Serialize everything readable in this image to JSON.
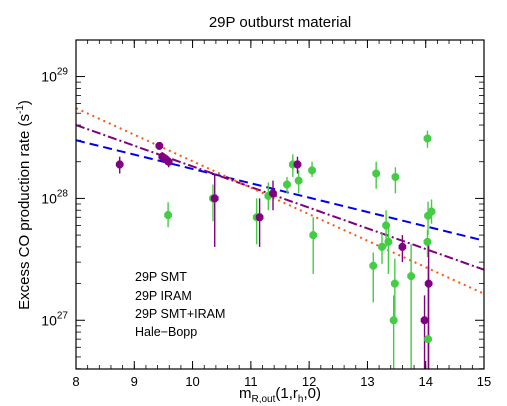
{
  "chart_data": {
    "type": "scatter",
    "title": "29P outburst material",
    "xlabel": {
      "main": "m",
      "sub": "R,out",
      "suffix": "(1,r",
      "sub2": "h",
      "end": ",0)"
    },
    "ylabel": {
      "main": "Excess CO production rate (s",
      "sup": "-1",
      "end": ")"
    },
    "xlim": [
      8,
      15
    ],
    "ylim_log10": [
      26.6,
      29.3
    ],
    "yscale": "log",
    "xticks": [
      8,
      9,
      10,
      11,
      12,
      13,
      14,
      15
    ],
    "yticks": [
      {
        "base": "10",
        "exp": "27",
        "log": 27
      },
      {
        "base": "10",
        "exp": "28",
        "log": 28
      },
      {
        "base": "10",
        "exp": "29",
        "log": 29
      }
    ],
    "legend": {
      "placement": "bottom-left",
      "entries": [
        {
          "label": "29P SMT",
          "color": "#44cc44"
        },
        {
          "label": "29P IRAM",
          "color": "#800080"
        },
        {
          "label": "29P SMT+IRAM",
          "color": "#0000ee"
        },
        {
          "label": "Hale−Bopp",
          "color": "#ff5511"
        }
      ]
    },
    "series": [
      {
        "name": "29P SMT",
        "color": "#44cc44",
        "points": [
          {
            "x": 9.58,
            "y": 7.3e+27,
            "ylo": 5.8e+27,
            "yhi": 9.3e+27
          },
          {
            "x": 10.35,
            "y": 1e+28,
            "ylo": 6.5e+27,
            "yhi": 1.3e+28
          },
          {
            "x": 11.1,
            "y": 7e+27,
            "ylo": 4.2e+27,
            "yhi": 1e+28
          },
          {
            "x": 11.3,
            "y": 1.05e+28,
            "ylo": 8e+27,
            "yhi": 1.35e+28
          },
          {
            "x": 11.62,
            "y": 1.3e+28,
            "ylo": 1.1e+28,
            "yhi": 1.5e+28
          },
          {
            "x": 11.72,
            "y": 1.9e+28,
            "ylo": 1.5e+28,
            "yhi": 2.3e+28
          },
          {
            "x": 11.82,
            "y": 1.4e+28,
            "ylo": 1.1e+28,
            "yhi": 1.7e+28
          },
          {
            "x": 12.05,
            "y": 1.7e+28,
            "ylo": 1.5e+28,
            "yhi": 2e+28
          },
          {
            "x": 12.07,
            "y": 5e+27,
            "ylo": 2.4e+27,
            "yhi": 7e+27
          },
          {
            "x": 13.1,
            "y": 2.8e+27,
            "ylo": 1.4e+27,
            "yhi": 3.6e+27
          },
          {
            "x": 13.15,
            "y": 1.6e+28,
            "ylo": 1.2e+28,
            "yhi": 2e+28
          },
          {
            "x": 13.25,
            "y": 4e+27,
            "ylo": 2.9e+27,
            "yhi": 5.2e+27
          },
          {
            "x": 13.32,
            "y": 6e+27,
            "ylo": 4e+27,
            "yhi": 8e+27
          },
          {
            "x": 13.36,
            "y": 4.4e+27,
            "ylo": 2.4e+27,
            "yhi": 6.2e+27
          },
          {
            "x": 13.45,
            "y": 1e+27,
            "ylo": 3e+26,
            "yhi": 1.6e+27
          },
          {
            "x": 13.47,
            "y": 2e+27,
            "ylo": 1e+27,
            "yhi": 3.2e+27
          },
          {
            "x": 13.48,
            "y": 1.5e+28,
            "ylo": 1.1e+28,
            "yhi": 1.8e+28
          },
          {
            "x": 13.75,
            "y": 2.3e+27,
            "ylo": 3e+26,
            "yhi": 4.2e+27
          },
          {
            "x": 14.03,
            "y": 3.1e+28,
            "ylo": 2.6e+28,
            "yhi": 3.6e+28
          },
          {
            "x": 14.03,
            "y": 4.4e+27,
            "ylo": 3.3e+27,
            "yhi": 5.5e+27
          },
          {
            "x": 14.04,
            "y": 7.2e+27,
            "ylo": 5e+27,
            "yhi": 9.4e+27
          },
          {
            "x": 14.04,
            "y": 7e+26,
            "ylo": 3e+26,
            "yhi": 2.8e+27
          },
          {
            "x": 14.1,
            "y": 7.8e+27,
            "ylo": 6.2e+27,
            "yhi": 9.8e+27
          }
        ]
      },
      {
        "name": "29P IRAM",
        "color": "#800080",
        "points": [
          {
            "x": 8.75,
            "y": 1.9e+28,
            "ylo": 1.6e+28,
            "yhi": 2.2e+28
          },
          {
            "x": 9.43,
            "y": 2.7e+28,
            "ylo": 2.5e+28,
            "yhi": 2.9e+28
          },
          {
            "x": 9.48,
            "y": 2.2e+28,
            "ylo": 2e+28,
            "yhi": 2.4e+28
          },
          {
            "x": 9.54,
            "y": 2.1e+28,
            "ylo": 1.9e+28,
            "yhi": 2.3e+28
          },
          {
            "x": 9.59,
            "y": 2e+28,
            "ylo": 1.8e+28,
            "yhi": 2.2e+28
          },
          {
            "x": 10.38,
            "y": 1e+28,
            "ylo": 4e+27,
            "yhi": 1.6e+28
          },
          {
            "x": 11.15,
            "y": 7e+27,
            "ylo": 4e+27,
            "yhi": 1e+28
          },
          {
            "x": 11.38,
            "y": 1.1e+28,
            "ylo": 8e+27,
            "yhi": 1.4e+28
          },
          {
            "x": 11.8,
            "y": 1.9e+28,
            "ylo": 1.6e+28,
            "yhi": 2.2e+28
          },
          {
            "x": 13.6,
            "y": 4e+27,
            "ylo": 3e+27,
            "yhi": 5e+27
          },
          {
            "x": 13.98,
            "y": 1e+27,
            "ylo": 3e+26,
            "yhi": 1.6e+27
          },
          {
            "x": 14.05,
            "y": 2e+27,
            "ylo": 3e+26,
            "yhi": 4.5e+27
          }
        ]
      }
    ],
    "fits": [
      {
        "name": "29P SMT+IRAM",
        "color": "#0000ee",
        "dash": "9,5",
        "x": [
          8,
          15
        ],
        "y": [
          3e+28,
          4.5e+27
        ]
      },
      {
        "name": "29P IRAM",
        "color": "#800080",
        "dash": "9,3,2,3",
        "x": [
          8,
          15
        ],
        "y": [
          4e+28,
          2.6e+27
        ]
      },
      {
        "name": "Hale−Bopp",
        "color": "#ff5511",
        "dash": "2,4",
        "x": [
          8,
          15
        ],
        "y": [
          5.5e+28,
          1.65e+27
        ]
      }
    ]
  }
}
